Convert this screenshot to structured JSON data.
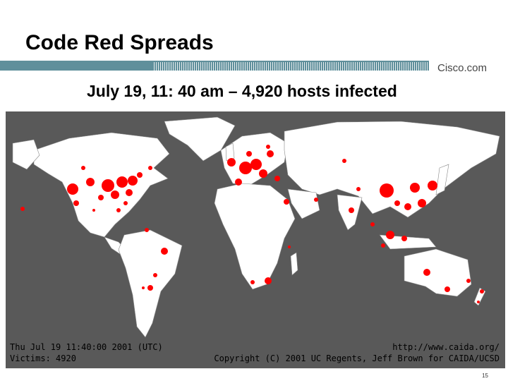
{
  "slide": {
    "title": "Code Red Spreads",
    "subtitle": "July 19, 11: 40 am – 4,920 hosts infected",
    "brand": "Cisco.com",
    "page_number": "15"
  },
  "map": {
    "land_color": "#ffffff",
    "ocean_color": "#595959",
    "marker_color": "#ff0000",
    "legend": {
      "time": "Thu Jul 19 11:40:00 2001 (UTC)",
      "victims": "Victims: 4920",
      "url": "http://www.caida.org/",
      "copyright": "Copyright (C) 2001 UC Regents, Jeff Brown for CAIDA/UCSD"
    }
  }
}
